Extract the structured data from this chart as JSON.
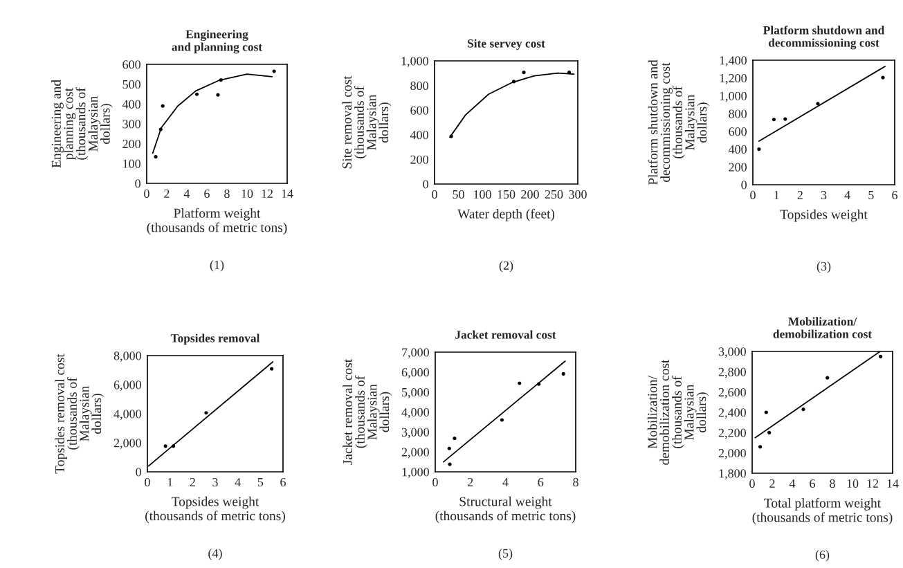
{
  "chart_data": [
    {
      "type": "scatter",
      "title": "Engineering\nand planning cost",
      "xlabel": "Platform weight\n(thousands of metric tons)",
      "ylabel": "Engineering and\nplanning cost\n(thousands of\nMalaysian\ndollars)",
      "annotations": [
        "(1)"
      ],
      "xlim": [
        0,
        14
      ],
      "ylim": [
        0,
        600
      ],
      "xticks": [
        0,
        2,
        4,
        6,
        8,
        10,
        12,
        14
      ],
      "yticks": [
        0,
        100,
        200,
        300,
        400,
        500,
        600
      ],
      "grid": false,
      "marker": "circle",
      "series": [
        {
          "color": "#000000",
          "x": [
            0.9,
            1.4,
            1.6,
            5.0,
            7.1,
            7.4,
            12.7
          ],
          "values": [
            134,
            272,
            390,
            449,
            446,
            521,
            565
          ]
        },
        {
          "type": "line",
          "color": "#000000",
          "line_style": "solid",
          "marker": "none",
          "x": [
            0.6,
            1.45,
            3.1,
            4.9,
            7.2,
            10,
            12.5
          ],
          "values": [
            152,
            280,
            390,
            466,
            519,
            551,
            538
          ]
        }
      ]
    },
    {
      "type": "scatter",
      "title": "Site servey cost",
      "xlabel": "Water depth (feet)",
      "ylabel": "Site removal cost\n(thousands of\nMalaysian\ndollars)",
      "annotations": [
        "(2)"
      ],
      "xlim": [
        0,
        300
      ],
      "ylim": [
        0,
        1000
      ],
      "xticks": [
        0,
        50,
        100,
        150,
        200,
        250,
        300
      ],
      "yticks": [
        0,
        200,
        400,
        600,
        800,
        {
          "value": 1000,
          "label": "1,000"
        }
      ],
      "grid": false,
      "marker": "circle",
      "series": [
        {
          "color": "#000000",
          "x": [
            35,
            166,
            187,
            282
          ],
          "values": [
            387,
            832,
            907,
            907
          ]
        },
        {
          "type": "line",
          "color": "#000000",
          "line_style": "solid",
          "marker": "none",
          "x": [
            32,
            65,
            113,
            161,
            209,
            258,
            292
          ],
          "values": [
            380,
            561,
            729,
            822,
            879,
            901,
            893
          ]
        }
      ]
    },
    {
      "type": "scatter",
      "title": "Platform shutdown and\ndecommissioning cost",
      "xlabel": "Topsides weight",
      "ylabel": "Platform shutdown and\ndecommissioning cost\n(thousands of\nMalaysian\ndollars)",
      "annotations": [
        "(3)"
      ],
      "xlim": [
        0,
        6
      ],
      "ylim": [
        0,
        1400
      ],
      "xticks": [
        0,
        1,
        2,
        3,
        4,
        5,
        6
      ],
      "yticks": [
        0,
        200,
        400,
        600,
        800,
        {
          "value": 1000,
          "label": "1,000"
        },
        {
          "value": 1200,
          "label": "1,200"
        },
        {
          "value": 1400,
          "label": "1,400"
        }
      ],
      "grid": false,
      "marker": "circle",
      "series": [
        {
          "color": "#000000",
          "x": [
            0.26,
            0.89,
            1.37,
            2.75,
            5.5
          ],
          "values": [
            400,
            733,
            738,
            911,
            1204
          ]
        },
        {
          "type": "line",
          "color": "#000000",
          "line_style": "solid",
          "marker": "none",
          "x": [
            0.26,
            5.59
          ],
          "values": [
            490,
            1330
          ]
        }
      ]
    },
    {
      "type": "scatter",
      "title": "Topsides removal",
      "xlabel": "Topsides weight\n(thousands of metric tons)",
      "ylabel": "Topsides removal cost\n(thousands of\nMalaysian\ndollars)",
      "annotations": [
        "(4)"
      ],
      "xlim": [
        0,
        6
      ],
      "ylim": [
        0,
        8000
      ],
      "xticks": [
        0,
        1,
        2,
        3,
        4,
        5,
        6
      ],
      "yticks": [
        0,
        {
          "value": 2000,
          "label": "2,000"
        },
        {
          "value": 4000,
          "label": "4,000"
        },
        {
          "value": 6000,
          "label": "6,000"
        },
        {
          "value": 8000,
          "label": "8,000"
        }
      ],
      "grid": false,
      "marker": "circle",
      "series": [
        {
          "color": "#000000",
          "x": [
            0.8,
            1.15,
            2.6,
            5.5
          ],
          "values": [
            1770,
            1770,
            4060,
            7090
          ]
        },
        {
          "type": "line",
          "color": "#000000",
          "line_style": "solid",
          "marker": "none",
          "x": [
            0.05,
            5.55
          ],
          "values": [
            400,
            7570
          ]
        }
      ]
    },
    {
      "type": "scatter",
      "title": "Jacket removal cost",
      "xlabel": "Structural weight\n(thousands of metric tons)",
      "ylabel": "Jacket removal cost\n(thousands of\nMalaysian\ndollars)",
      "annotations": [
        "(5)"
      ],
      "xlim": [
        0,
        8
      ],
      "ylim": [
        1000,
        7000
      ],
      "xticks": [
        0,
        2,
        4,
        6,
        8
      ],
      "yticks": [
        {
          "value": 1000,
          "label": "1,000"
        },
        {
          "value": 2000,
          "label": "2,000"
        },
        {
          "value": 3000,
          "label": "3,000"
        },
        {
          "value": 4000,
          "label": "4,000"
        },
        {
          "value": 5000,
          "label": "5,000"
        },
        {
          "value": 6000,
          "label": "6,000"
        },
        {
          "value": 7000,
          "label": "7,000"
        }
      ],
      "grid": false,
      "marker": "circle",
      "series": [
        {
          "color": "#000000",
          "x": [
            0.83,
            0.8,
            1.1,
            3.8,
            4.8,
            5.9,
            7.3
          ],
          "values": [
            1380,
            2170,
            2680,
            3600,
            5440,
            5400,
            5910
          ]
        },
        {
          "type": "line",
          "color": "#000000",
          "line_style": "solid",
          "marker": "none",
          "x": [
            0.47,
            7.4
          ],
          "values": [
            1500,
            6550
          ]
        }
      ]
    },
    {
      "type": "scatter",
      "title": "Mobilization/\ndemobilization cost",
      "xlabel": "Total platform weight\n(thousands of metric tons)",
      "ylabel": "Mobilization/\ndemobilization cost\n(thousands of\nMalaysian\ndollars)",
      "annotations": [
        "(6)"
      ],
      "xlim": [
        0,
        14
      ],
      "ylim": [
        1800,
        3000
      ],
      "xticks": [
        0,
        2,
        4,
        6,
        8,
        10,
        12,
        14
      ],
      "yticks": [
        {
          "value": 1800,
          "label": "1,800"
        },
        {
          "value": 2000,
          "label": "2,000"
        },
        {
          "value": 2200,
          "label": "2,200"
        },
        {
          "value": 2400,
          "label": "2,400"
        },
        {
          "value": 2600,
          "label": "2,600"
        },
        {
          "value": 2800,
          "label": "2,800"
        },
        {
          "value": 3000,
          "label": "3,000"
        }
      ],
      "grid": false,
      "marker": "circle",
      "series": [
        {
          "color": "#000000",
          "x": [
            0.8,
            1.4,
            1.7,
            5.1,
            7.5,
            12.8
          ],
          "values": [
            2060,
            2400,
            2200,
            2430,
            2740,
            2950
          ]
        },
        {
          "type": "line",
          "color": "#000000",
          "line_style": "solid",
          "marker": "none",
          "x": [
            0.3,
            12.75
          ],
          "values": [
            2150,
            3000
          ]
        }
      ]
    }
  ]
}
